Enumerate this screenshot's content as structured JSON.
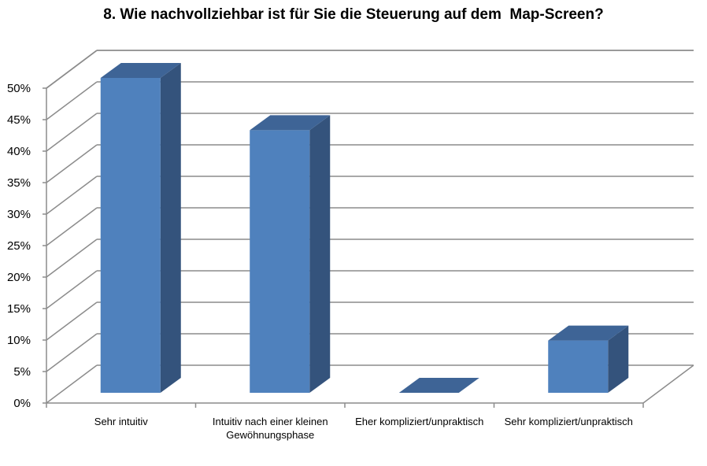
{
  "chart_data": {
    "type": "bar",
    "title": "8. Wie nachvollziehbar ist für Sie die Steuerung auf dem  Map-Screen?",
    "categories": [
      "Sehr intuitiv",
      "Intuitiv nach einer kleinen Gewöhnungsphase",
      "Eher kompliziert/unpraktisch",
      "Sehr kompliziert/unpraktisch"
    ],
    "values": [
      50,
      41.7,
      0,
      8.3
    ],
    "yticks": [
      "0%",
      "5%",
      "10%",
      "15%",
      "20%",
      "25%",
      "30%",
      "35%",
      "40%",
      "45%",
      "50%"
    ],
    "ylim": [
      0,
      50
    ],
    "grid": true,
    "legend": "none",
    "three_d": true,
    "colors": {
      "front": "#4F81BD",
      "side": "#34537C",
      "top": "#3E6496"
    }
  }
}
